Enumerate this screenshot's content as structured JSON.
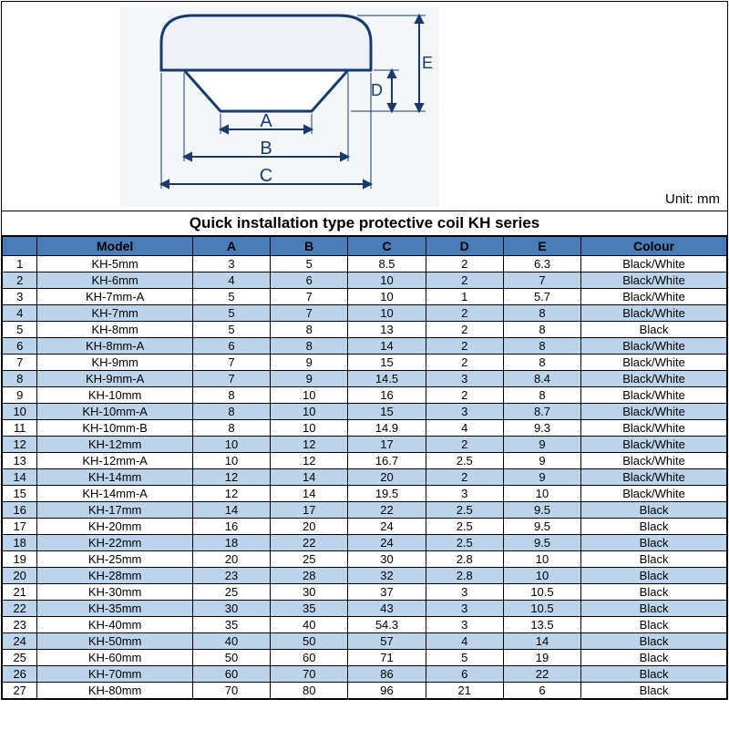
{
  "unit_label": "Unit: mm",
  "title": "Quick installation type protective coil KH series",
  "diagram": {
    "labels": {
      "A": "A",
      "B": "B",
      "C": "C",
      "D": "D",
      "E": "E"
    },
    "stroke": "#1a3a6e",
    "fill": "#eef2f6"
  },
  "table": {
    "headers": {
      "model": "Model",
      "A": "A",
      "B": "B",
      "C": "C",
      "D": "D",
      "E": "E",
      "colour": "Colour"
    },
    "header_bg": "#4a7db8",
    "row_alt_bg": "#bcd4ea",
    "rows": [
      {
        "idx": "1",
        "model": "KH-5mm",
        "A": "3",
        "B": "5",
        "C": "8.5",
        "D": "2",
        "E": "6.3",
        "colour": "Black/White"
      },
      {
        "idx": "2",
        "model": "KH-6mm",
        "A": "4",
        "B": "6",
        "C": "10",
        "D": "2",
        "E": "7",
        "colour": "Black/White"
      },
      {
        "idx": "3",
        "model": "KH-7mm-A",
        "A": "5",
        "B": "7",
        "C": "10",
        "D": "1",
        "E": "5.7",
        "colour": "Black/White"
      },
      {
        "idx": "4",
        "model": "KH-7mm",
        "A": "5",
        "B": "7",
        "C": "10",
        "D": "2",
        "E": "8",
        "colour": "Black/White"
      },
      {
        "idx": "5",
        "model": "KH-8mm",
        "A": "5",
        "B": "8",
        "C": "13",
        "D": "2",
        "E": "8",
        "colour": "Black"
      },
      {
        "idx": "6",
        "model": "KH-8mm-A",
        "A": "6",
        "B": "8",
        "C": "14",
        "D": "2",
        "E": "8",
        "colour": "Black/White"
      },
      {
        "idx": "7",
        "model": "KH-9mm",
        "A": "7",
        "B": "9",
        "C": "15",
        "D": "2",
        "E": "8",
        "colour": "Black/White"
      },
      {
        "idx": "8",
        "model": "KH-9mm-A",
        "A": "7",
        "B": "9",
        "C": "14.5",
        "D": "3",
        "E": "8.4",
        "colour": "Black/White"
      },
      {
        "idx": "9",
        "model": "KH-10mm",
        "A": "8",
        "B": "10",
        "C": "16",
        "D": "2",
        "E": "8",
        "colour": "Black/White"
      },
      {
        "idx": "10",
        "model": "KH-10mm-A",
        "A": "8",
        "B": "10",
        "C": "15",
        "D": "3",
        "E": "8.7",
        "colour": "Black/White"
      },
      {
        "idx": "11",
        "model": "KH-10mm-B",
        "A": "8",
        "B": "10",
        "C": "14.9",
        "D": "4",
        "E": "9.3",
        "colour": "Black/White"
      },
      {
        "idx": "12",
        "model": "KH-12mm",
        "A": "10",
        "B": "12",
        "C": "17",
        "D": "2",
        "E": "9",
        "colour": "Black/White"
      },
      {
        "idx": "13",
        "model": "KH-12mm-A",
        "A": "10",
        "B": "12",
        "C": "16.7",
        "D": "2.5",
        "E": "9",
        "colour": "Black/White"
      },
      {
        "idx": "14",
        "model": "KH-14mm",
        "A": "12",
        "B": "14",
        "C": "20",
        "D": "2",
        "E": "9",
        "colour": "Black/White"
      },
      {
        "idx": "15",
        "model": "KH-14mm-A",
        "A": "12",
        "B": "14",
        "C": "19.5",
        "D": "3",
        "E": "10",
        "colour": "Black/White"
      },
      {
        "idx": "16",
        "model": "KH-17mm",
        "A": "14",
        "B": "17",
        "C": "22",
        "D": "2.5",
        "E": "9.5",
        "colour": "Black"
      },
      {
        "idx": "17",
        "model": "KH-20mm",
        "A": "16",
        "B": "20",
        "C": "24",
        "D": "2.5",
        "E": "9.5",
        "colour": "Black"
      },
      {
        "idx": "18",
        "model": "KH-22mm",
        "A": "18",
        "B": "22",
        "C": "24",
        "D": "2.5",
        "E": "9.5",
        "colour": "Black"
      },
      {
        "idx": "19",
        "model": "KH-25mm",
        "A": "20",
        "B": "25",
        "C": "30",
        "D": "2.8",
        "E": "10",
        "colour": "Black"
      },
      {
        "idx": "20",
        "model": "KH-28mm",
        "A": "23",
        "B": "28",
        "C": "32",
        "D": "2.8",
        "E": "10",
        "colour": "Black"
      },
      {
        "idx": "21",
        "model": "KH-30mm",
        "A": "25",
        "B": "30",
        "C": "37",
        "D": "3",
        "E": "10.5",
        "colour": "Black"
      },
      {
        "idx": "22",
        "model": "KH-35mm",
        "A": "30",
        "B": "35",
        "C": "43",
        "D": "3",
        "E": "10.5",
        "colour": "Black"
      },
      {
        "idx": "23",
        "model": "KH-40mm",
        "A": "35",
        "B": "40",
        "C": "54.3",
        "D": "3",
        "E": "13.5",
        "colour": "Black"
      },
      {
        "idx": "24",
        "model": "KH-50mm",
        "A": "40",
        "B": "50",
        "C": "57",
        "D": "4",
        "E": "14",
        "colour": "Black"
      },
      {
        "idx": "25",
        "model": "KH-60mm",
        "A": "50",
        "B": "60",
        "C": "71",
        "D": "5",
        "E": "19",
        "colour": "Black"
      },
      {
        "idx": "26",
        "model": "KH-70mm",
        "A": "60",
        "B": "70",
        "C": "86",
        "D": "6",
        "E": "22",
        "colour": "Black"
      },
      {
        "idx": "27",
        "model": "KH-80mm",
        "A": "70",
        "B": "80",
        "C": "96",
        "D": "21",
        "E": "6",
        "colour": "Black"
      }
    ]
  }
}
